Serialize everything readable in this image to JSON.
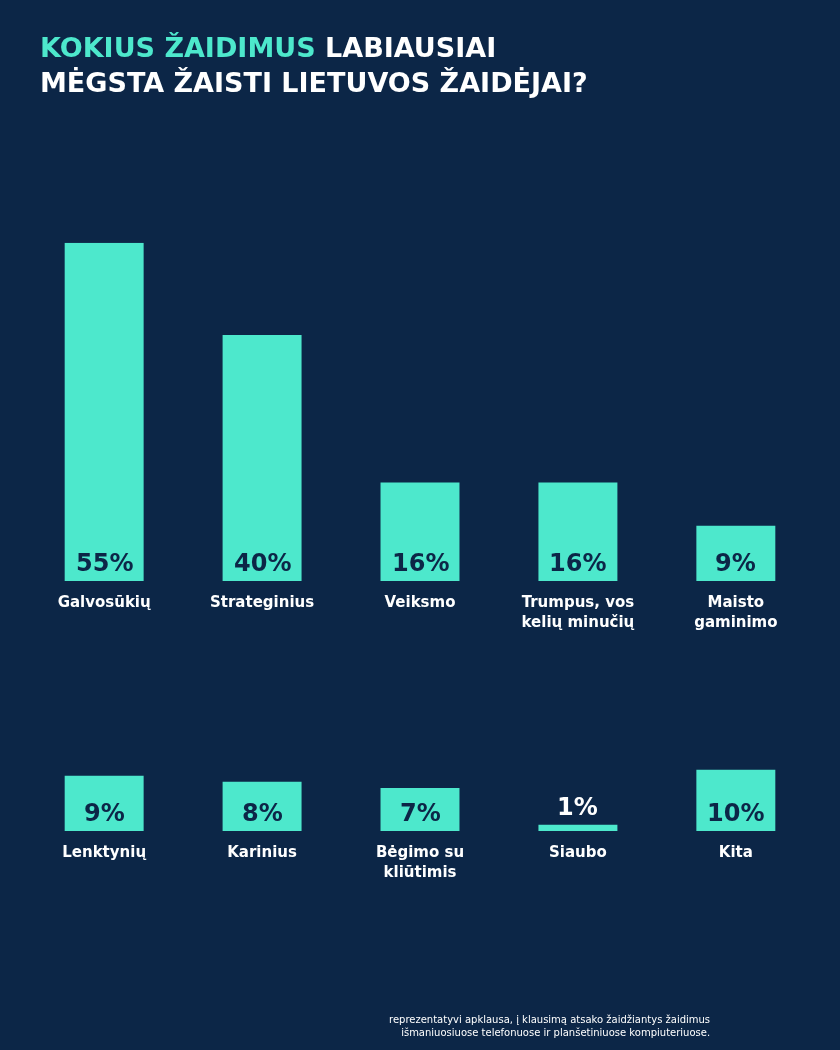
{
  "chart_data": [
    {
      "type": "bar",
      "title": "KOKIUS ŽAIDIMUS LABIAUSIAI MĖGSTA ŽAISTI LIETUVOS ŽAIDĖJAI?",
      "categories": [
        "Galvosūkių",
        "Strateginius",
        "Veiksmo",
        "Trumpus, vos kelių minučių",
        "Maisto gaminimo"
      ],
      "values": [
        55,
        40,
        16,
        16,
        9
      ],
      "value_labels": [
        "55%",
        "40%",
        "16%",
        "16%",
        "9%"
      ],
      "color": "#4de8cc",
      "tick_labels": "x",
      "legend": false,
      "grid": false
    },
    {
      "type": "bar",
      "categories": [
        "Lenktynių",
        "Karinius",
        "Bėgimo su kliūtimis",
        "Siaubo",
        "Kita"
      ],
      "values": [
        9,
        8,
        7,
        1,
        10
      ],
      "value_labels": [
        "9%",
        "8%",
        "7%",
        "1%",
        "10%"
      ],
      "color": "#4de8cc",
      "tick_labels": "x",
      "legend": false,
      "grid": false,
      "annotations": [
        "reprezentatyvi apklausa, į klausimą atsako žaidžiantys žaidimus išmaniuosiuose telefonuose ir planšetiniuose kompiuteriuose."
      ]
    }
  ]
}
